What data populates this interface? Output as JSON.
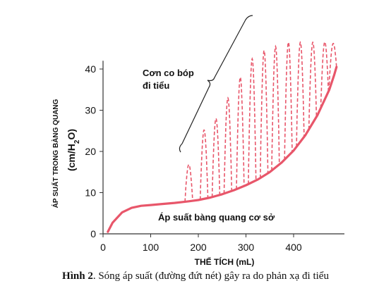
{
  "chart_data": {
    "type": "line",
    "xlabel": "THỂ TÍCH (mL)",
    "ylabel_line1": "ÁP SUẤT TRONG BÀNG QUANG",
    "ylabel_line2_prefix": "(cm/H",
    "ylabel_line2_sub": "2",
    "ylabel_line2_suffix": "O)",
    "xlim": [
      0,
      500
    ],
    "ylim": [
      0,
      42
    ],
    "x_ticks": [
      0,
      100,
      200,
      300,
      400
    ],
    "y_ticks": [
      0,
      10,
      20,
      30,
      40
    ],
    "series": [
      {
        "name": "Áp suất bàng quang cơ sở",
        "style": "solid",
        "x": [
          10,
          20,
          40,
          60,
          80,
          100,
          120,
          150,
          180,
          200,
          225,
          250,
          275,
          300,
          325,
          350,
          375,
          400,
          425,
          450,
          475,
          485,
          490
        ],
        "y": [
          0.5,
          2.7,
          5.2,
          6.3,
          6.8,
          7.0,
          7.2,
          7.5,
          7.9,
          8.2,
          8.8,
          9.6,
          10.6,
          11.8,
          13.2,
          15.0,
          17.3,
          20.2,
          24.0,
          28.8,
          35.0,
          38.5,
          40.5
        ]
      },
      {
        "name": "Sóng áp suất (đường đứt nét)",
        "style": "dashed",
        "waves": [
          {
            "x": 180,
            "peak": 16.8
          },
          {
            "x": 212,
            "peak": 25.2
          },
          {
            "x": 237,
            "peak": 28.0
          },
          {
            "x": 262,
            "peak": 33.0
          },
          {
            "x": 288,
            "peak": 38.0
          },
          {
            "x": 313,
            "peak": 42.5
          },
          {
            "x": 338,
            "peak": 44.5
          },
          {
            "x": 362,
            "peak": 45.5
          },
          {
            "x": 389,
            "peak": 46.5
          },
          {
            "x": 414,
            "peak": 46.5
          },
          {
            "x": 440,
            "peak": 46.5
          },
          {
            "x": 465,
            "peak": 46.5
          },
          {
            "x": 482,
            "peak": 46.0
          }
        ]
      }
    ],
    "annotations": {
      "contraction_line1": "Cơn co bóp",
      "contraction_line2": "đi tiểu",
      "baseline_label": "Áp suất bàng quang cơ sở"
    },
    "colors": {
      "curve": "#e8566a",
      "axis": "#333333",
      "text": "#111111"
    }
  },
  "caption": {
    "label": "Hình 2",
    "text": ". Sóng áp suất (đường đứt nét) gây ra do phản xạ đi tiểu"
  }
}
